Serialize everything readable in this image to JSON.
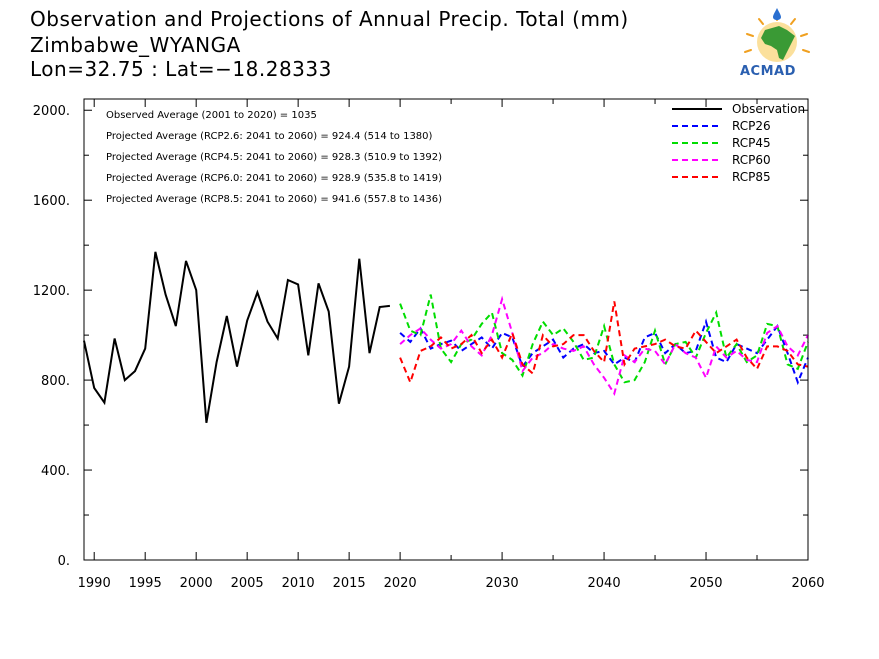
{
  "header": {
    "title": "Observation and Projections of Annual Precip. Total (mm)",
    "location": "Zimbabwe_WYANGA",
    "coords": "Lon=32.75 : Lat=−18.28333"
  },
  "logo": {
    "text": "ACMAD",
    "icon": "africa-map-logo-icon"
  },
  "stats": [
    "Observed Average (2001 to 2020) = 1035",
    "Projected Average (RCP2.6: 2041 to 2060) =  924.4 (514 to 1380)",
    "Projected Average (RCP4.5: 2041 to 2060) =  928.3 (510.9 to 1392)",
    "Projected Average (RCP6.0: 2041 to 2060) =  928.9 (535.8 to 1419)",
    "Projected Average (RCP8.5: 2041 to 2060) =  941.6 (557.8 to 1436)"
  ],
  "chart_data": {
    "type": "line",
    "xlim": [
      1989,
      2060
    ],
    "ylim": [
      0,
      2050
    ],
    "x_ticks": [
      {
        "v": 1990,
        "label": "1990"
      },
      {
        "v": 1995,
        "label": "1995"
      },
      {
        "v": 2000,
        "label": "2000"
      },
      {
        "v": 2005,
        "label": "2005"
      },
      {
        "v": 2010,
        "label": "2010"
      },
      {
        "v": 2015,
        "label": "2015"
      },
      {
        "v": 2020,
        "label": "2020"
      },
      {
        "v": 2030,
        "label": "2030"
      },
      {
        "v": 2040,
        "label": "2040"
      },
      {
        "v": 2050,
        "label": "2050"
      },
      {
        "v": 2060,
        "label": "2060"
      }
    ],
    "y_ticks": [
      {
        "v": 0,
        "label": "0."
      },
      {
        "v": 400,
        "label": "400."
      },
      {
        "v": 800,
        "label": "800."
      },
      {
        "v": 1200,
        "label": "1200."
      },
      {
        "v": 1600,
        "label": "1600."
      },
      {
        "v": 2000,
        "label": "2000."
      }
    ],
    "legend_position": "top-right",
    "series": [
      {
        "name": "Observation",
        "color": "#000000",
        "dash": "none",
        "x": [
          1989,
          1990,
          1991,
          1992,
          1993,
          1994,
          1995,
          1996,
          1997,
          1998,
          1999,
          2000,
          2001,
          2002,
          2003,
          2004,
          2005,
          2006,
          2007,
          2008,
          2009,
          2010,
          2011,
          2012,
          2013,
          2014,
          2015,
          2016,
          2017,
          2018,
          2019
        ],
        "y": [
          975,
          765,
          700,
          985,
          800,
          840,
          940,
          1370,
          1180,
          1040,
          1330,
          1200,
          610,
          880,
          1085,
          860,
          1065,
          1190,
          1060,
          985,
          1245,
          1225,
          910,
          1230,
          1105,
          695,
          860,
          1340,
          920,
          1125,
          1130
        ]
      },
      {
        "name": "RCP26",
        "color": "#0000ff",
        "dash": "6,4",
        "x": [
          2020,
          2021,
          2022,
          2023,
          2024,
          2025,
          2026,
          2027,
          2028,
          2029,
          2030,
          2031,
          2032,
          2033,
          2034,
          2035,
          2036,
          2037,
          2038,
          2039,
          2040,
          2041,
          2042,
          2043,
          2044,
          2045,
          2046,
          2047,
          2048,
          2049,
          2050,
          2051,
          2052,
          2053,
          2054,
          2055,
          2056,
          2057,
          2058,
          2059,
          2060
        ],
        "y": [
          1010,
          970,
          1030,
          940,
          960,
          975,
          930,
          960,
          990,
          940,
          1010,
          990,
          860,
          920,
          950,
          980,
          900,
          940,
          960,
          920,
          930,
          870,
          900,
          880,
          990,
          1010,
          920,
          960,
          920,
          930,
          1060,
          900,
          880,
          960,
          940,
          920,
          980,
          1040,
          920,
          790,
          900
        ]
      },
      {
        "name": "RCP45",
        "color": "#00dd00",
        "dash": "6,4",
        "x": [
          2020,
          2021,
          2022,
          2023,
          2024,
          2025,
          2026,
          2027,
          2028,
          2029,
          2030,
          2031,
          2032,
          2033,
          2034,
          2035,
          2036,
          2037,
          2038,
          2039,
          2040,
          2041,
          2042,
          2043,
          2044,
          2045,
          2046,
          2047,
          2048,
          2049,
          2050,
          2051,
          2052,
          2053,
          2054,
          2055,
          2056,
          2057,
          2058,
          2059,
          2060
        ],
        "y": [
          1140,
          1020,
          1000,
          1180,
          940,
          880,
          960,
          980,
          1050,
          1100,
          920,
          890,
          820,
          960,
          1060,
          1000,
          1030,
          970,
          890,
          900,
          1040,
          870,
          790,
          800,
          880,
          1020,
          870,
          960,
          970,
          900,
          1010,
          1100,
          900,
          960,
          880,
          910,
          1050,
          1040,
          870,
          850,
          970
        ]
      },
      {
        "name": "RCP60",
        "color": "#ff00ff",
        "dash": "6,4",
        "x": [
          2020,
          2021,
          2022,
          2023,
          2024,
          2025,
          2026,
          2027,
          2028,
          2029,
          2030,
          2031,
          2032,
          2033,
          2034,
          2035,
          2036,
          2037,
          2038,
          2039,
          2040,
          2041,
          2042,
          2043,
          2044,
          2045,
          2046,
          2047,
          2048,
          2049,
          2050,
          2051,
          2052,
          2053,
          2054,
          2055,
          2056,
          2057,
          2058,
          2059,
          2060
        ],
        "y": [
          960,
          1000,
          1030,
          980,
          940,
          960,
          1020,
          950,
          910,
          1000,
          1160,
          1010,
          840,
          900,
          920,
          960,
          940,
          930,
          950,
          870,
          810,
          740,
          910,
          880,
          940,
          930,
          870,
          960,
          920,
          900,
          810,
          950,
          900,
          930,
          890,
          880,
          1010,
          1040,
          950,
          910,
          1000
        ]
      },
      {
        "name": "RCP85",
        "color": "#ff0000",
        "dash": "6,4",
        "x": [
          2020,
          2021,
          2022,
          2023,
          2024,
          2025,
          2026,
          2027,
          2028,
          2029,
          2030,
          2031,
          2032,
          2033,
          2034,
          2035,
          2036,
          2037,
          2038,
          2039,
          2040,
          2041,
          2042,
          2043,
          2044,
          2045,
          2046,
          2047,
          2048,
          2049,
          2050,
          2051,
          2052,
          2053,
          2054,
          2055,
          2056,
          2057,
          2058,
          2059,
          2060
        ],
        "y": [
          900,
          790,
          930,
          950,
          990,
          940,
          960,
          1000,
          920,
          980,
          900,
          1010,
          870,
          830,
          1000,
          950,
          960,
          1000,
          1000,
          930,
          880,
          1150,
          870,
          940,
          950,
          960,
          980,
          950,
          940,
          1020,
          970,
          920,
          950,
          980,
          900,
          850,
          950,
          950,
          930,
          870,
          860
        ]
      }
    ]
  }
}
